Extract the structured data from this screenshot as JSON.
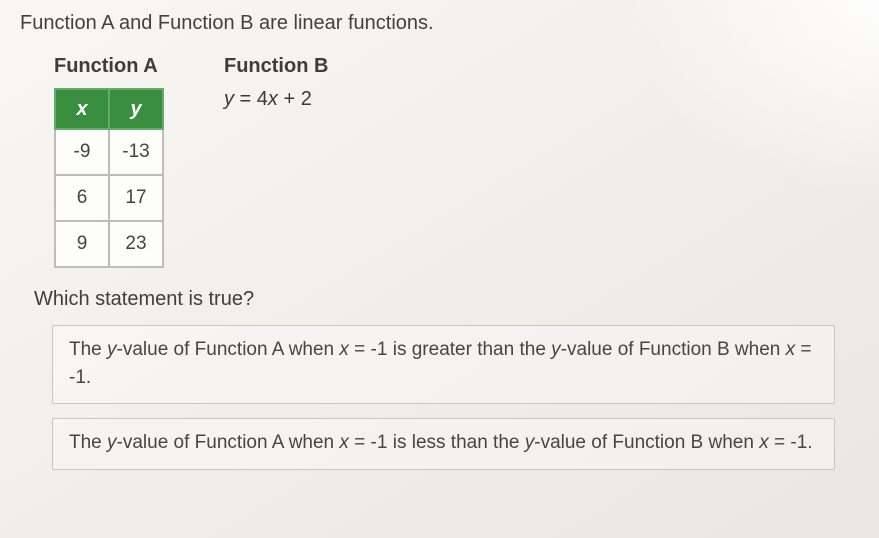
{
  "prompt": "Function A and Function B are linear functions.",
  "functionA": {
    "title": "Function A",
    "table": {
      "columns": [
        "x",
        "y"
      ],
      "rows": [
        [
          "-9",
          "-13"
        ],
        [
          "6",
          "17"
        ],
        [
          "9",
          "23"
        ]
      ]
    },
    "header_bg": "#3a8e3f",
    "header_fg": "#ffffff",
    "cell_bg": "#fdfdfb",
    "border_color": "#bdbdb4"
  },
  "functionB": {
    "title": "Function B",
    "equation_parts": {
      "y": "y",
      "eq": " = ",
      "coef": "4",
      "x": "x",
      "plus": " + ",
      "const": "2"
    }
  },
  "question": "Which statement is true?",
  "options": [
    {
      "pre": "The ",
      "yval": "y",
      "mid1": "-value of Function A when ",
      "xvar": "x",
      "eqv": " = -1 is greater than the ",
      "yval2": "y",
      "mid2": "-value of Function B when ",
      "xvar2": "x",
      "eqv2": " = -1."
    },
    {
      "pre": "The ",
      "yval": "y",
      "mid1": "-value of Function A when ",
      "xvar": "x",
      "eqv": " = -1 is less than the ",
      "yval2": "y",
      "mid2": "-value of Function B when ",
      "xvar2": "x",
      "eqv2": " = -1."
    }
  ],
  "colors": {
    "page_bg_top": "#f8f7f4",
    "page_bg_bottom": "#eae6e0",
    "text": "#4a4a4a",
    "option_border": "#c9c6bf"
  }
}
